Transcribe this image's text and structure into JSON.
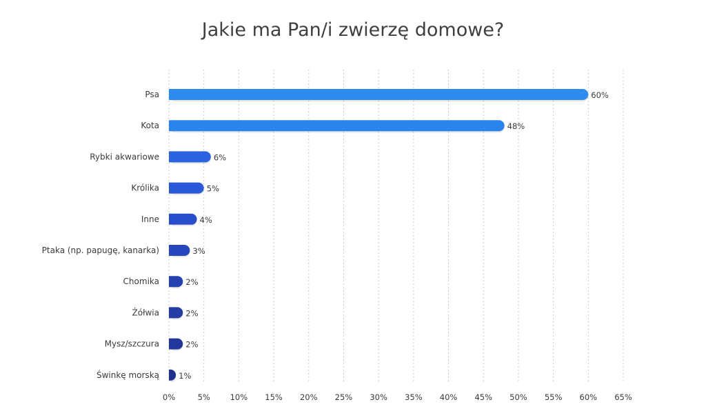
{
  "chart_data": {
    "type": "bar",
    "orientation": "horizontal",
    "title": "Jakie ma Pan/i zwierzę domowe?",
    "categories": [
      "Psa",
      "Kota",
      "Rybki akwariowe",
      "Królika",
      "Inne",
      "Ptaka (np. papugę, kanarka)",
      "Chomika",
      "Żółwia",
      "Mysz/szczura",
      "Świnkę morską"
    ],
    "values": [
      60,
      48,
      6,
      5,
      4,
      3,
      2,
      2,
      2,
      1
    ],
    "value_labels": [
      "60%",
      "48%",
      "6%",
      "5%",
      "4%",
      "3%",
      "2%",
      "2%",
      "2%",
      "1%"
    ],
    "xlim": [
      0,
      65
    ],
    "x_ticks": [
      "0%",
      "5%",
      "10%",
      "15%",
      "20%",
      "25%",
      "30%",
      "35%",
      "40%",
      "45%",
      "50%",
      "55%",
      "60%",
      "65%"
    ],
    "grid": "vertical dashed",
    "colors": [
      "#2e8cf0",
      "#2b83ec",
      "#2c63e0",
      "#2a58d6",
      "#294ecc",
      "#2746be",
      "#2541b0",
      "#233ca6",
      "#21379c",
      "#1f3290"
    ]
  }
}
